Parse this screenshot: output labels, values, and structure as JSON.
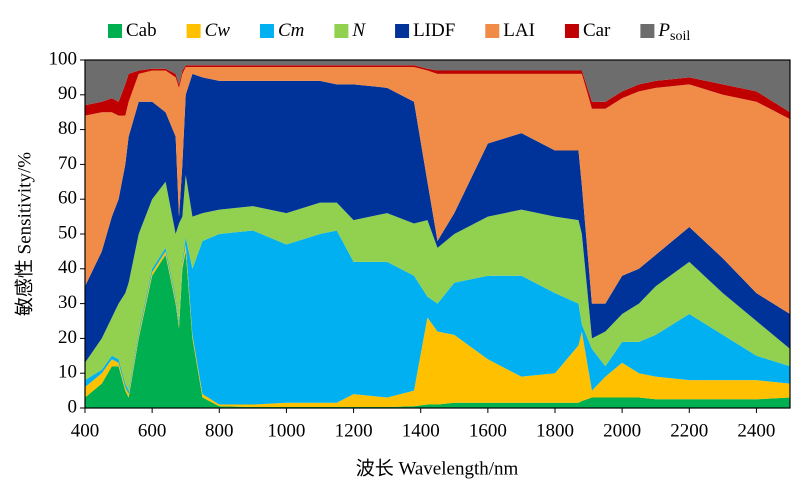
{
  "chart_data": {
    "type": "stacked_area",
    "xlabel": "波长 Wavelength/nm",
    "ylabel": "敏感性 Sensitivity/%",
    "xlim": [
      400,
      2500
    ],
    "xticks": [
      400,
      600,
      800,
      1000,
      1200,
      1400,
      1600,
      1800,
      2000,
      2200,
      2400
    ],
    "ylim": [
      0,
      100
    ],
    "yticks": [
      0,
      10,
      20,
      30,
      40,
      50,
      60,
      70,
      80,
      90,
      100
    ],
    "legend": "top",
    "x": [
      400,
      450,
      480,
      500,
      520,
      530,
      560,
      600,
      640,
      670,
      680,
      690,
      700,
      720,
      750,
      800,
      900,
      1000,
      1100,
      1150,
      1200,
      1300,
      1380,
      1420,
      1450,
      1500,
      1600,
      1700,
      1800,
      1870,
      1880,
      1910,
      1950,
      2000,
      2050,
      2100,
      2200,
      2300,
      2400,
      2500
    ],
    "series": [
      {
        "name": "Cab",
        "color": "#00b050",
        "values": [
          3,
          7,
          12,
          12,
          5,
          3,
          20,
          38,
          44,
          30,
          23,
          40,
          45,
          20,
          3,
          0.5,
          0.3,
          0.3,
          0.3,
          0.3,
          0.3,
          0.3,
          0.5,
          1,
          1,
          1.5,
          1.5,
          1.5,
          1.5,
          1.5,
          2,
          3,
          3,
          3,
          3,
          2.5,
          2.5,
          2.5,
          2.5,
          3
        ]
      },
      {
        "name": "Cw",
        "italic": true,
        "color": "#ffc000",
        "values": [
          3,
          3,
          2,
          1,
          1,
          1,
          1,
          1,
          1,
          1,
          1,
          1,
          2,
          1,
          1,
          0.5,
          0.7,
          1.2,
          1.2,
          1.2,
          3.7,
          2.7,
          4.5,
          25,
          21,
          19.5,
          12.5,
          7.5,
          8.5,
          16.5,
          20,
          2,
          6,
          10,
          7,
          6.5,
          5.5,
          5.5,
          5.5,
          4
        ]
      },
      {
        "name": "Cm",
        "italic": true,
        "color": "#00b0f0",
        "values": [
          2,
          1,
          1,
          1,
          1,
          1,
          1,
          1,
          1,
          1,
          1,
          1,
          2,
          19,
          44,
          49,
          50,
          45.5,
          48.5,
          49.5,
          38,
          39,
          33,
          6,
          8,
          15,
          24,
          29,
          23,
          12,
          2,
          12,
          3,
          6,
          9,
          12,
          19,
          13,
          7,
          5
        ]
      },
      {
        "name": "N",
        "italic": true,
        "color": "#92d050",
        "values": [
          5,
          9,
          11,
          16,
          26,
          31,
          28,
          20,
          19,
          18,
          28,
          13,
          18,
          15,
          8,
          7,
          7,
          9,
          9,
          8,
          12,
          14,
          15,
          22,
          16,
          14,
          17,
          19,
          22,
          24,
          26,
          3,
          10,
          8,
          11,
          14,
          15,
          12,
          10,
          5
        ]
      },
      {
        "name": "LIDF",
        "color": "#003399",
        "values": [
          22,
          25,
          29,
          30,
          37,
          42,
          38,
          28,
          20,
          28,
          2,
          15,
          23,
          41,
          39,
          37,
          36,
          38,
          35,
          34,
          39,
          36,
          35,
          11,
          2,
          6,
          21,
          22,
          19,
          20,
          14,
          10,
          8,
          11,
          10,
          9,
          10,
          10,
          8,
          10
        ]
      },
      {
        "name": "LAI",
        "color": "#f08c48",
        "values": [
          49,
          40,
          30,
          24,
          14,
          10,
          8,
          9,
          12,
          17,
          37,
          26,
          8,
          2,
          3,
          4,
          4,
          4,
          4,
          5,
          5,
          6,
          10,
          32,
          48,
          40,
          20,
          17,
          22,
          22,
          32,
          56,
          56,
          51,
          51,
          48,
          41,
          47,
          55,
          56
        ]
      },
      {
        "name": "Car",
        "color": "#c00000",
        "values": [
          3,
          3,
          4,
          4,
          9,
          8,
          1,
          0.5,
          0.5,
          1,
          1,
          1,
          0.5,
          0.5,
          0.5,
          0.5,
          0.5,
          0.5,
          0.5,
          0.5,
          0.5,
          0.5,
          0.5,
          0.5,
          1,
          1,
          1,
          1,
          1,
          1,
          1,
          2,
          2,
          2,
          2,
          2,
          2,
          3,
          3,
          2
        ]
      },
      {
        "name": "P",
        "name_sub": "soil",
        "italic": true,
        "color": "#6d6d6d",
        "values": [
          13,
          12,
          11,
          12,
          7,
          4,
          3,
          2.5,
          2.5,
          4,
          7,
          3,
          1.5,
          1.5,
          1.5,
          1.5,
          1.5,
          1.5,
          1.5,
          1.5,
          1.5,
          1.5,
          1.5,
          2.5,
          3,
          3,
          3,
          3,
          3,
          3,
          3,
          12,
          12,
          9,
          7,
          6,
          5,
          7,
          9,
          15
        ]
      }
    ]
  }
}
